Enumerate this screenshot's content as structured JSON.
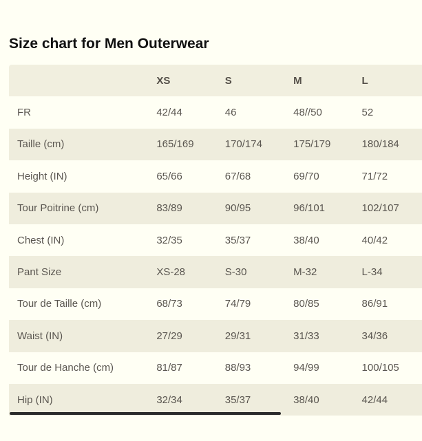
{
  "title": "Size chart for Men Outerwear",
  "table": {
    "headers": [
      "",
      "XS",
      "S",
      "M",
      "L"
    ],
    "rows": [
      {
        "label": "FR",
        "values": [
          "42/44",
          "46",
          "48//50",
          "52"
        ]
      },
      {
        "label": "Taille (cm)",
        "values": [
          "165/169",
          "170/174",
          "175/179",
          "180/184"
        ]
      },
      {
        "label": "Height (IN)",
        "values": [
          "65/66",
          "67/68",
          "69/70",
          "71/72"
        ]
      },
      {
        "label": "Tour Poitrine (cm)",
        "values": [
          "83/89",
          "90/95",
          "96/101",
          "102/107"
        ]
      },
      {
        "label": "Chest (IN)",
        "values": [
          "32/35",
          "35/37",
          "38/40",
          "40/42"
        ]
      },
      {
        "label": "Pant Size",
        "values": [
          "XS-28",
          "S-30",
          "M-32",
          "L-34"
        ]
      },
      {
        "label": "Tour de Taille (cm)",
        "values": [
          "68/73",
          "74/79",
          "80/85",
          "86/91"
        ]
      },
      {
        "label": "Waist (IN)",
        "values": [
          "27/29",
          "29/31",
          "31/33",
          "34/36"
        ]
      },
      {
        "label": "Tour de Hanche (cm)",
        "values": [
          "81/87",
          "88/93",
          "94/99",
          "100/105"
        ]
      },
      {
        "label": "Hip (IN)",
        "values": [
          "32/34",
          "35/37",
          "38/40",
          "42/44"
        ]
      }
    ]
  },
  "colors": {
    "page_background": "#fffff4",
    "header_background": "#f1efdf",
    "stripe_background": "#efeddd",
    "title_text": "#111111",
    "body_text": "#5a5650",
    "scrollbar": "#2b2b2b"
  }
}
